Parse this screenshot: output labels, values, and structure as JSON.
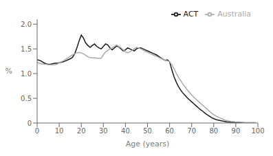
{
  "chart_data": {
    "type": "line",
    "xlabel": "Age (years)",
    "ylabel": "%",
    "x": [
      0,
      1,
      2,
      3,
      4,
      5,
      6,
      7,
      8,
      9,
      10,
      11,
      12,
      13,
      14,
      15,
      16,
      17,
      18,
      19,
      20,
      21,
      22,
      23,
      24,
      25,
      26,
      27,
      28,
      29,
      30,
      31,
      32,
      33,
      34,
      35,
      36,
      37,
      38,
      39,
      40,
      41,
      42,
      43,
      44,
      45,
      46,
      47,
      48,
      49,
      50,
      51,
      52,
      53,
      54,
      55,
      56,
      57,
      58,
      59,
      60,
      61,
      62,
      63,
      64,
      65,
      66,
      67,
      68,
      69,
      70,
      71,
      72,
      73,
      74,
      75,
      76,
      77,
      78,
      79,
      80,
      81,
      82,
      83,
      84,
      85,
      86,
      87,
      88,
      89,
      90,
      91,
      92,
      93,
      94,
      95,
      96,
      97,
      98,
      99
    ],
    "series": [
      {
        "name": "ACT",
        "color": "#1a1a1a",
        "values": [
          1.28,
          1.27,
          1.25,
          1.22,
          1.2,
          1.19,
          1.19,
          1.2,
          1.21,
          1.21,
          1.22,
          1.23,
          1.24,
          1.26,
          1.28,
          1.3,
          1.33,
          1.4,
          1.52,
          1.66,
          1.78,
          1.72,
          1.62,
          1.57,
          1.53,
          1.57,
          1.6,
          1.55,
          1.52,
          1.5,
          1.55,
          1.6,
          1.58,
          1.52,
          1.48,
          1.52,
          1.56,
          1.54,
          1.5,
          1.46,
          1.48,
          1.52,
          1.5,
          1.48,
          1.46,
          1.5,
          1.52,
          1.52,
          1.5,
          1.48,
          1.46,
          1.44,
          1.42,
          1.4,
          1.38,
          1.35,
          1.32,
          1.29,
          1.27,
          1.28,
          1.24,
          1.08,
          0.94,
          0.83,
          0.74,
          0.67,
          0.61,
          0.56,
          0.51,
          0.47,
          0.43,
          0.39,
          0.35,
          0.31,
          0.27,
          0.24,
          0.2,
          0.17,
          0.14,
          0.11,
          0.09,
          0.07,
          0.06,
          0.05,
          0.04,
          0.03,
          0.02,
          0.02,
          0.01,
          0.01,
          0.01,
          0.01,
          0.01,
          0.01,
          0.0,
          0.0,
          0.0,
          0.0,
          0.0,
          0.0
        ]
      },
      {
        "name": "Australia",
        "color": "#aaaaaa",
        "values": [
          1.23,
          1.21,
          1.2,
          1.19,
          1.19,
          1.18,
          1.18,
          1.18,
          1.18,
          1.19,
          1.22,
          1.24,
          1.26,
          1.29,
          1.32,
          1.35,
          1.38,
          1.4,
          1.42,
          1.43,
          1.42,
          1.4,
          1.37,
          1.34,
          1.32,
          1.32,
          1.32,
          1.31,
          1.31,
          1.31,
          1.38,
          1.44,
          1.47,
          1.5,
          1.52,
          1.55,
          1.58,
          1.55,
          1.52,
          1.48,
          1.44,
          1.42,
          1.44,
          1.47,
          1.5,
          1.53,
          1.52,
          1.5,
          1.48,
          1.45,
          1.43,
          1.41,
          1.39,
          1.37,
          1.35,
          1.33,
          1.31,
          1.29,
          1.27,
          1.26,
          1.24,
          1.18,
          1.1,
          1.01,
          0.93,
          0.86,
          0.79,
          0.73,
          0.67,
          0.62,
          0.57,
          0.52,
          0.48,
          0.44,
          0.4,
          0.36,
          0.32,
          0.28,
          0.24,
          0.2,
          0.17,
          0.14,
          0.12,
          0.1,
          0.08,
          0.06,
          0.05,
          0.04,
          0.03,
          0.03,
          0.02,
          0.02,
          0.02,
          0.01,
          0.01,
          0.01,
          0.01,
          0.01,
          0.01,
          0.01
        ]
      }
    ],
    "xlim": [
      0,
      100
    ],
    "ylim": [
      0,
      2.1
    ],
    "xticks": [
      0,
      10,
      20,
      30,
      40,
      50,
      60,
      70,
      80,
      90,
      100
    ],
    "yticks": [
      0,
      0.5,
      {
        "value": 1,
        "label": "1.0"
      },
      1.5,
      {
        "value": 2,
        "label": "2.0"
      }
    ],
    "legend": "upper right",
    "grid": false
  }
}
